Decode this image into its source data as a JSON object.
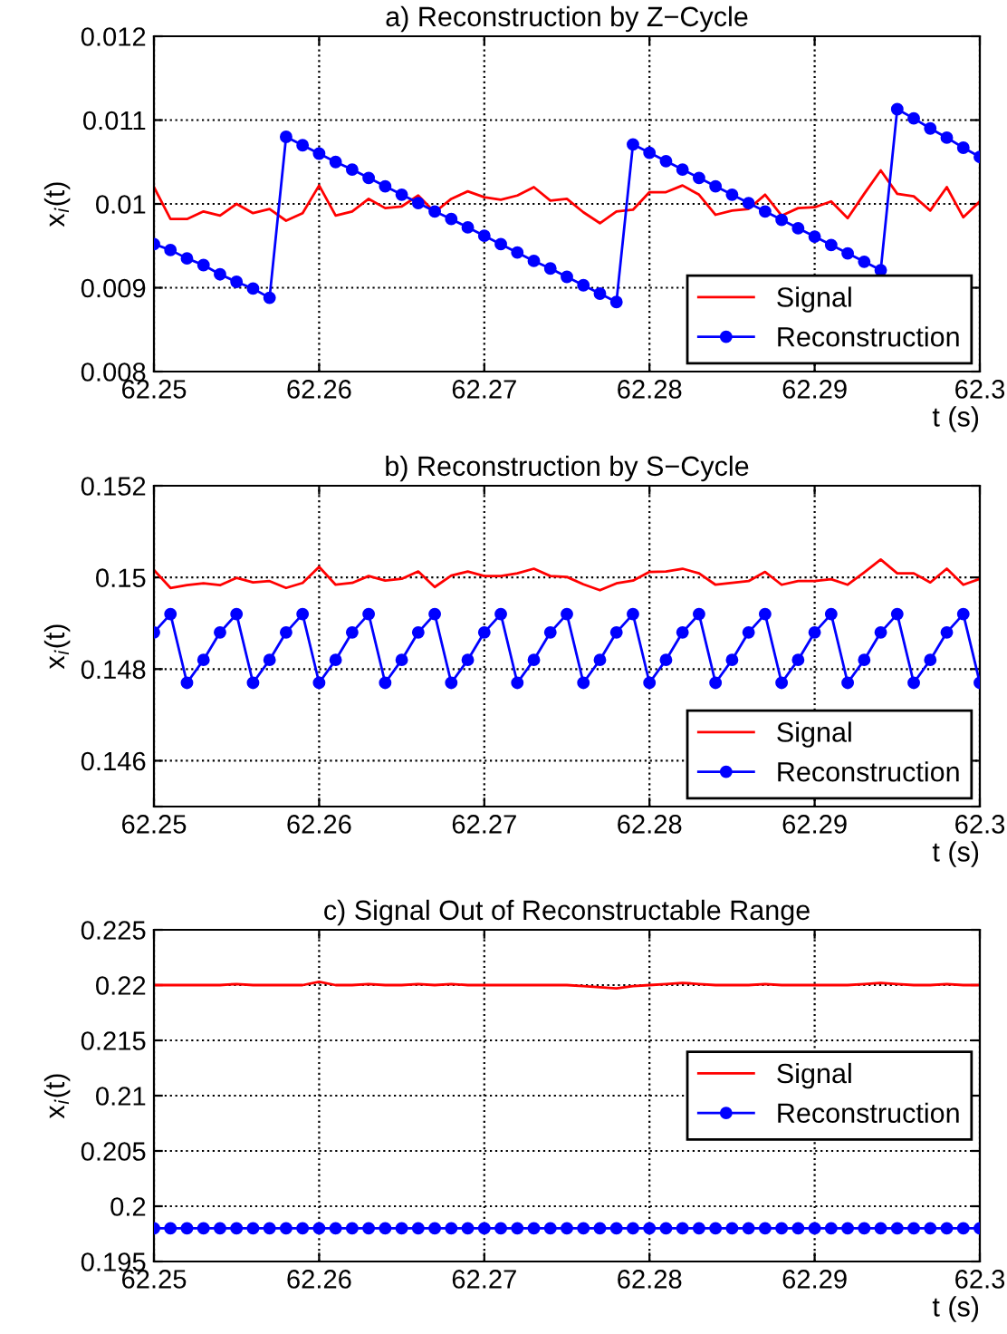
{
  "chart_data": [
    {
      "type": "line",
      "title": "a) Reconstruction by Z−Cycle",
      "xlabel": "t (s)",
      "ylabel": "x$_{i}$(t)",
      "x": [
        62.25,
        62.251,
        62.252,
        62.253,
        62.254,
        62.255,
        62.256,
        62.257,
        62.258,
        62.259,
        62.26,
        62.261,
        62.262,
        62.263,
        62.264,
        62.265,
        62.266,
        62.267,
        62.268,
        62.269,
        62.27,
        62.271,
        62.272,
        62.273,
        62.274,
        62.275,
        62.276,
        62.277,
        62.278,
        62.279,
        62.28,
        62.281,
        62.282,
        62.283,
        62.284,
        62.285,
        62.286,
        62.287,
        62.288,
        62.289,
        62.29,
        62.291,
        62.292,
        62.293,
        62.294,
        62.295,
        62.296,
        62.297,
        62.298,
        62.299,
        62.3
      ],
      "series": [
        {
          "name": "Signal",
          "color": "#ff0000",
          "marker": "none",
          "values": [
            0.0102,
            0.00982,
            0.00982,
            0.00991,
            0.00986,
            0.01,
            0.00989,
            0.00994,
            0.0098,
            0.00989,
            0.01022,
            0.00986,
            0.00991,
            0.01006,
            0.00995,
            0.00997,
            0.0101,
            0.0099,
            0.01006,
            0.01015,
            0.01008,
            0.01005,
            0.0101,
            0.0102,
            0.01004,
            0.01006,
            0.0099,
            0.00977,
            0.00991,
            0.00993,
            0.01014,
            0.01014,
            0.01022,
            0.01011,
            0.00987,
            0.00992,
            0.00994,
            0.01011,
            0.00986,
            0.00995,
            0.00996,
            0.01003,
            0.00983,
            0.01012,
            0.0104,
            0.01012,
            0.01009,
            0.00992,
            0.0102,
            0.00984,
            0.01003
          ]
        },
        {
          "name": "Reconstruction",
          "color": "#0000ff",
          "marker": "circle",
          "values": [
            0.00952,
            0.00945,
            0.00935,
            0.00927,
            0.00916,
            0.00907,
            0.00899,
            0.00888,
            0.0108,
            0.0107,
            0.0106,
            0.0105,
            0.01041,
            0.01031,
            0.01021,
            0.01011,
            0.01001,
            0.00991,
            0.00982,
            0.00972,
            0.00962,
            0.00952,
            0.00942,
            0.00932,
            0.00923,
            0.00913,
            0.00903,
            0.00893,
            0.00883,
            0.01071,
            0.01061,
            0.01051,
            0.01041,
            0.01031,
            0.01021,
            0.01011,
            0.01001,
            0.00991,
            0.00981,
            0.00971,
            0.00961,
            0.00951,
            0.00941,
            0.00931,
            0.00921,
            0.01113,
            0.01102,
            0.0109,
            0.01079,
            0.01067,
            0.01056
          ]
        }
      ],
      "xlim": [
        62.25,
        62.3
      ],
      "xticks": [
        62.25,
        62.26,
        62.27,
        62.28,
        62.29,
        62.3
      ],
      "ylim": [
        0.008,
        0.012
      ],
      "yticks": [
        0.008,
        0.009,
        0.01,
        0.011,
        0.012
      ],
      "grid": true,
      "legend": "bottom right",
      "line_style": "solid"
    },
    {
      "type": "line",
      "title": "b) Reconstruction by S−Cycle",
      "xlabel": "t (s)",
      "ylabel": "x$_{i}$(t)",
      "x": [
        62.25,
        62.251,
        62.252,
        62.253,
        62.254,
        62.255,
        62.256,
        62.257,
        62.258,
        62.259,
        62.26,
        62.261,
        62.262,
        62.263,
        62.264,
        62.265,
        62.266,
        62.267,
        62.268,
        62.269,
        62.27,
        62.271,
        62.272,
        62.273,
        62.274,
        62.275,
        62.276,
        62.277,
        62.278,
        62.279,
        62.28,
        62.281,
        62.282,
        62.283,
        62.284,
        62.285,
        62.286,
        62.287,
        62.288,
        62.289,
        62.29,
        62.291,
        62.292,
        62.293,
        62.294,
        62.295,
        62.296,
        62.297,
        62.298,
        62.299,
        62.3
      ],
      "series": [
        {
          "name": "Signal",
          "color": "#ff0000",
          "marker": "none",
          "values": [
            0.15016,
            0.14977,
            0.14983,
            0.14987,
            0.14983,
            0.14999,
            0.14989,
            0.14992,
            0.14977,
            0.14988,
            0.15023,
            0.14984,
            0.14988,
            0.15003,
            0.14993,
            0.14997,
            0.15013,
            0.14979,
            0.15004,
            0.15013,
            0.15003,
            0.15003,
            0.15009,
            0.15019,
            0.15003,
            0.15001,
            0.14985,
            0.14972,
            0.14987,
            0.14993,
            0.15012,
            0.15013,
            0.15019,
            0.15009,
            0.14984,
            0.14988,
            0.14992,
            0.15012,
            0.14984,
            0.14992,
            0.14992,
            0.14996,
            0.14984,
            0.15011,
            0.15039,
            0.15009,
            0.15009,
            0.14989,
            0.15019,
            0.14984,
            0.14997
          ]
        },
        {
          "name": "Reconstruction",
          "color": "#0000ff",
          "marker": "circle",
          "values": [
            0.1488,
            0.1492,
            0.1477,
            0.1482,
            0.1488,
            0.1492,
            0.1477,
            0.1482,
            0.1488,
            0.1492,
            0.1477,
            0.1482,
            0.1488,
            0.1492,
            0.1477,
            0.1482,
            0.1488,
            0.1492,
            0.1477,
            0.1482,
            0.1488,
            0.1492,
            0.1477,
            0.1482,
            0.1488,
            0.1492,
            0.1477,
            0.1482,
            0.1488,
            0.1492,
            0.1477,
            0.1482,
            0.1488,
            0.1492,
            0.1477,
            0.1482,
            0.1488,
            0.1492,
            0.1477,
            0.1482,
            0.1488,
            0.1492,
            0.1477,
            0.1482,
            0.1488,
            0.1492,
            0.1477,
            0.1482,
            0.1488,
            0.1492,
            0.1477
          ]
        }
      ],
      "xlim": [
        62.25,
        62.3
      ],
      "xticks": [
        62.25,
        62.26,
        62.27,
        62.28,
        62.29,
        62.3
      ],
      "ylim": [
        0.145,
        0.152
      ],
      "yticks": [
        {
          "value": 0.145,
          "label": null
        },
        0.146,
        0.148,
        0.15,
        0.152
      ],
      "grid": true,
      "legend": "bottom right",
      "line_style": "solid"
    },
    {
      "type": "line",
      "title": "c) Signal Out of Reconstructable Range",
      "xlabel": "t (s)",
      "ylabel": "x$_{i}$(t)",
      "x": [
        62.25,
        62.251,
        62.252,
        62.253,
        62.254,
        62.255,
        62.256,
        62.257,
        62.258,
        62.259,
        62.26,
        62.261,
        62.262,
        62.263,
        62.264,
        62.265,
        62.266,
        62.267,
        62.268,
        62.269,
        62.27,
        62.271,
        62.272,
        62.273,
        62.274,
        62.275,
        62.276,
        62.277,
        62.278,
        62.279,
        62.28,
        62.281,
        62.282,
        62.283,
        62.284,
        62.285,
        62.286,
        62.287,
        62.288,
        62.289,
        62.29,
        62.291,
        62.292,
        62.293,
        62.294,
        62.295,
        62.296,
        62.297,
        62.298,
        62.299,
        62.3
      ],
      "series": [
        {
          "name": "Signal",
          "color": "#ff0000",
          "marker": "none",
          "values": [
            0.22,
            0.22,
            0.22,
            0.22,
            0.22,
            0.2201,
            0.22,
            0.22,
            0.22,
            0.22,
            0.2203,
            0.22,
            0.22,
            0.2201,
            0.22,
            0.22,
            0.2201,
            0.22,
            0.2201,
            0.22,
            0.22,
            0.22,
            0.22,
            0.22,
            0.22,
            0.22,
            0.2199,
            0.2198,
            0.2197,
            0.2199,
            0.22,
            0.2201,
            0.2202,
            0.2201,
            0.22,
            0.22,
            0.22,
            0.2201,
            0.22,
            0.22,
            0.22,
            0.22,
            0.22,
            0.2201,
            0.2202,
            0.2201,
            0.22,
            0.22,
            0.2201,
            0.22,
            0.22
          ]
        },
        {
          "name": "Reconstruction",
          "color": "#0000ff",
          "marker": "circle",
          "values": [
            0.198,
            0.198,
            0.198,
            0.198,
            0.198,
            0.198,
            0.198,
            0.198,
            0.198,
            0.198,
            0.198,
            0.198,
            0.198,
            0.198,
            0.198,
            0.198,
            0.198,
            0.198,
            0.198,
            0.198,
            0.198,
            0.198,
            0.198,
            0.198,
            0.198,
            0.198,
            0.198,
            0.198,
            0.198,
            0.198,
            0.198,
            0.198,
            0.198,
            0.198,
            0.198,
            0.198,
            0.198,
            0.198,
            0.198,
            0.198,
            0.198,
            0.198,
            0.198,
            0.198,
            0.198,
            0.198,
            0.198,
            0.198,
            0.198,
            0.198,
            0.198
          ]
        }
      ],
      "xlim": [
        62.25,
        62.3
      ],
      "xticks": [
        62.25,
        62.26,
        62.27,
        62.28,
        62.29,
        62.3
      ],
      "ylim": [
        0.195,
        0.225
      ],
      "yticks": [
        0.195,
        0.2,
        0.205,
        0.21,
        0.215,
        0.22,
        0.225
      ],
      "grid": true,
      "legend": "center right",
      "line_style": "solid"
    }
  ]
}
